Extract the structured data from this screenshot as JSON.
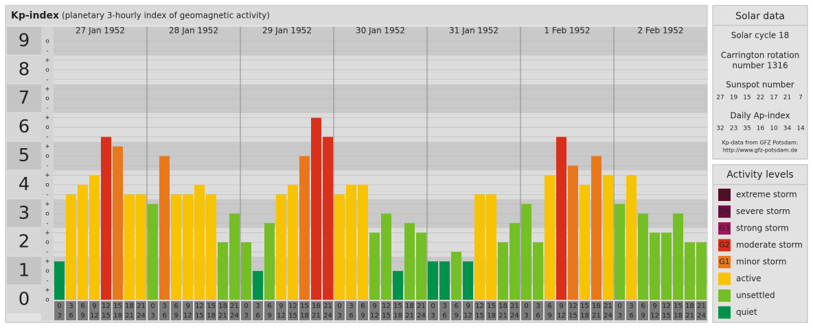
{
  "header": {
    "title": "Kp-index",
    "subtitle": "(planetary 3-hourly index of geomagnetic activity)"
  },
  "chart_data": {
    "type": "bar",
    "days": [
      "27 Jan 1952",
      "28 Jan 1952",
      "29 Jan 1952",
      "30 Jan 1952",
      "31 Jan 1952",
      "1 Feb 1952",
      "2 Feb 1952"
    ],
    "intervals": [
      [
        "0",
        "3"
      ],
      [
        "3",
        "6"
      ],
      [
        "6",
        "9"
      ],
      [
        "9",
        "12"
      ],
      [
        "12",
        "15"
      ],
      [
        "15",
        "18"
      ],
      [
        "18",
        "21"
      ],
      [
        "21",
        "24"
      ]
    ],
    "values": [
      1.333,
      3.667,
      4,
      4.333,
      5.667,
      5.333,
      3.667,
      3.667,
      3.333,
      5,
      3.667,
      3.667,
      4,
      3.667,
      2,
      3,
      2,
      1,
      2.667,
      3.667,
      4,
      5,
      6.333,
      5.667,
      3.667,
      4,
      4,
      2.333,
      3,
      1,
      2.667,
      2.333,
      1.333,
      1.333,
      1.667,
      1.333,
      3.667,
      3.667,
      2,
      2.667,
      3.333,
      2,
      4.333,
      5.667,
      4.667,
      4,
      5,
      4.333,
      3.333,
      4.333,
      3,
      2.333,
      2.333,
      3,
      2,
      2
    ],
    "colors": [
      "#00924a",
      "#f8c300",
      "#f8c300",
      "#f8c300",
      "#d9301c",
      "#e8781c",
      "#f8c300",
      "#f8c300",
      "#74bf26",
      "#e8781c",
      "#f8c300",
      "#f8c300",
      "#f8c300",
      "#f8c300",
      "#74bf26",
      "#74bf26",
      "#74bf26",
      "#00924a",
      "#74bf26",
      "#f8c300",
      "#f8c300",
      "#e8781c",
      "#d9301c",
      "#d9301c",
      "#f8c300",
      "#f8c300",
      "#f8c300",
      "#74bf26",
      "#74bf26",
      "#00924a",
      "#74bf26",
      "#74bf26",
      "#00924a",
      "#00924a",
      "#74bf26",
      "#00924a",
      "#f8c300",
      "#f8c300",
      "#74bf26",
      "#74bf26",
      "#74bf26",
      "#74bf26",
      "#f8c300",
      "#d9301c",
      "#e8781c",
      "#f8c300",
      "#e8781c",
      "#f8c300",
      "#74bf26",
      "#f8c300",
      "#74bf26",
      "#74bf26",
      "#74bf26",
      "#74bf26",
      "#74bf26",
      "#74bf26"
    ],
    "ylim": [
      0,
      9.5
    ],
    "yticks": [
      0,
      1,
      2,
      3,
      4,
      5,
      6,
      7,
      8,
      9
    ],
    "minor_yticks": [
      {
        "value": 0,
        "label": "o"
      },
      {
        "value": 0.333,
        "label": "+"
      },
      {
        "value": 0.667,
        "label": "-"
      },
      {
        "value": 1,
        "label": "o"
      },
      {
        "value": 1.333,
        "label": "+"
      },
      {
        "value": 1.667,
        "label": "-"
      },
      {
        "value": 2,
        "label": "o"
      },
      {
        "value": 2.333,
        "label": "+"
      },
      {
        "value": 2.667,
        "label": "-"
      },
      {
        "value": 3,
        "label": "o"
      },
      {
        "value": 3.333,
        "label": "+"
      },
      {
        "value": 3.667,
        "label": "-"
      },
      {
        "value": 4,
        "label": "o"
      },
      {
        "value": 4.333,
        "label": "+"
      },
      {
        "value": 4.667,
        "label": "-"
      },
      {
        "value": 5,
        "label": "o"
      },
      {
        "value": 5.333,
        "label": "+"
      },
      {
        "value": 5.667,
        "label": "-"
      },
      {
        "value": 6,
        "label": "o"
      },
      {
        "value": 6.333,
        "label": "+"
      },
      {
        "value": 6.667,
        "label": "-"
      },
      {
        "value": 7,
        "label": "o"
      },
      {
        "value": 7.333,
        "label": "+"
      },
      {
        "value": 7.667,
        "label": "-"
      },
      {
        "value": 8,
        "label": "o"
      },
      {
        "value": 8.333,
        "label": "+"
      },
      {
        "value": 8.667,
        "label": "-"
      },
      {
        "value": 9,
        "label": "o"
      }
    ]
  },
  "solar": {
    "title": "Solar data",
    "cycle": "Solar cycle 18",
    "carrington": [
      "Carrington rotation",
      "number 1316"
    ],
    "sunspot_title": "Sunspot number",
    "sunspot": [
      27,
      19,
      15,
      22,
      17,
      21,
      7
    ],
    "ap_title": "Daily Ap-index",
    "ap": [
      32,
      23,
      35,
      16,
      10,
      34,
      14
    ],
    "source": [
      "Kp-data from GFZ Potsdam:",
      "http://www.gfz-potsdam.de"
    ]
  },
  "activity": {
    "title": "Activity levels",
    "items": [
      {
        "badge": "G5",
        "label": "extreme storm",
        "color": "#5a0a28"
      },
      {
        "badge": "G4",
        "label": "severe storm",
        "color": "#72093f"
      },
      {
        "badge": "G3",
        "label": "strong storm",
        "color": "#a3145c"
      },
      {
        "badge": "G2",
        "label": "moderate storm",
        "color": "#d9301c"
      },
      {
        "badge": "G1",
        "label": "minor storm",
        "color": "#e8781c"
      },
      {
        "label": "active",
        "color": "#f8c300"
      },
      {
        "label": "unsettled",
        "color": "#74bf26"
      },
      {
        "label": "quiet",
        "color": "#00924a"
      }
    ]
  }
}
